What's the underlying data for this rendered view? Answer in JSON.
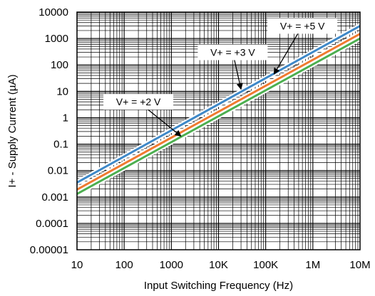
{
  "chart_data": {
    "type": "line",
    "xlabel": "Input Switching Frequency (Hz)",
    "ylabel": "I+ - Supply Current (µA)",
    "xscale": "log",
    "yscale": "log",
    "xlim": [
      10,
      10000000
    ],
    "ylim": [
      1e-05,
      10000
    ],
    "grid": true,
    "x_ticks": [
      {
        "value": 10,
        "label": "10"
      },
      {
        "value": 100,
        "label": "100"
      },
      {
        "value": 1000,
        "label": "1000"
      },
      {
        "value": 10000,
        "label": "10K"
      },
      {
        "value": 100000,
        "label": "100K"
      },
      {
        "value": 1000000,
        "label": "1M"
      },
      {
        "value": 10000000,
        "label": "10M"
      }
    ],
    "y_ticks": [
      {
        "value": 1e-05,
        "label": "0.00001"
      },
      {
        "value": 0.0001,
        "label": "0.0001"
      },
      {
        "value": 0.001,
        "label": "0.001"
      },
      {
        "value": 0.01,
        "label": "0.01"
      },
      {
        "value": 0.1,
        "label": "0.1"
      },
      {
        "value": 1,
        "label": "1"
      },
      {
        "value": 10,
        "label": "10"
      },
      {
        "value": 100,
        "label": "100"
      },
      {
        "value": 1000,
        "label": "1000"
      },
      {
        "value": 10000,
        "label": "10000"
      }
    ],
    "series": [
      {
        "name": "V+ = +5 V",
        "color": "#3e88c8",
        "x": [
          10,
          10000000
        ],
        "y": [
          0.0035,
          3000
        ]
      },
      {
        "name": "V+ = +3 V",
        "color": "#f07a30",
        "x": [
          10,
          10000000
        ],
        "y": [
          0.0019,
          1500
        ]
      },
      {
        "name": "V+ = +2 V",
        "color": "#4caf50",
        "x": [
          10,
          10000000
        ],
        "y": [
          0.0013,
          1000
        ]
      }
    ],
    "annotations": [
      {
        "text": "V+ = +5 V",
        "series": 0,
        "text_x": 600000,
        "text_y": 3000,
        "arrow_x": 150000,
        "arrow_y": 45
      },
      {
        "text": "V+ = +3 V",
        "series": 1,
        "text_x": 20000,
        "text_y": 300,
        "arrow_x": 30000,
        "arrow_y": 12
      },
      {
        "text": "V+ = +2 V",
        "series": 2,
        "text_x": 200,
        "text_y": 4,
        "arrow_x": 1600,
        "arrow_y": 0.2
      }
    ]
  }
}
